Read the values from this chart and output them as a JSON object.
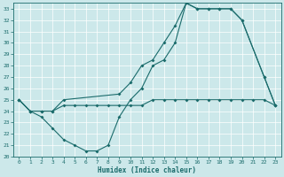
{
  "xlabel": "Humidex (Indice chaleur)",
  "xlim": [
    -0.5,
    23.5
  ],
  "ylim": [
    20,
    33.5
  ],
  "yticks": [
    20,
    21,
    22,
    23,
    24,
    25,
    26,
    27,
    28,
    29,
    30,
    31,
    32,
    33
  ],
  "xticks": [
    0,
    1,
    2,
    3,
    4,
    5,
    6,
    7,
    8,
    9,
    10,
    11,
    12,
    13,
    14,
    15,
    16,
    17,
    18,
    19,
    20,
    21,
    22,
    23
  ],
  "bg_color": "#cce8ea",
  "line_color": "#1a6b6b",
  "line1_x": [
    0,
    1,
    2,
    3,
    4,
    5,
    6,
    7,
    8,
    9,
    10,
    11,
    12,
    13,
    14,
    15,
    16,
    17,
    18,
    19,
    20,
    21,
    22,
    23
  ],
  "line1_y": [
    25,
    24,
    24,
    24,
    24.5,
    24.5,
    24.5,
    24.5,
    24.5,
    24.5,
    24.5,
    24.5,
    25,
    25,
    25,
    25,
    25,
    25,
    25,
    25,
    25,
    25,
    25,
    24.5
  ],
  "line2_x": [
    0,
    1,
    2,
    3,
    4,
    9,
    10,
    11,
    12,
    13,
    14,
    15,
    16,
    17,
    18,
    19,
    20,
    22,
    23
  ],
  "line2_y": [
    25,
    24,
    24,
    24,
    25,
    25.5,
    26.5,
    28,
    28.5,
    30,
    31.5,
    33.5,
    33,
    33,
    33,
    33,
    32,
    27,
    24.5
  ],
  "line3_x": [
    0,
    1,
    2,
    3,
    4,
    5,
    6,
    7,
    8,
    9,
    10,
    11,
    12,
    13,
    14,
    15,
    16,
    17,
    18,
    19,
    20,
    22,
    23
  ],
  "line3_y": [
    25,
    24,
    23.5,
    22.5,
    21.5,
    21,
    20.5,
    20.5,
    21,
    23.5,
    25,
    26,
    28,
    28.5,
    30,
    33.5,
    33,
    33,
    33,
    33,
    32,
    27,
    24.5
  ]
}
